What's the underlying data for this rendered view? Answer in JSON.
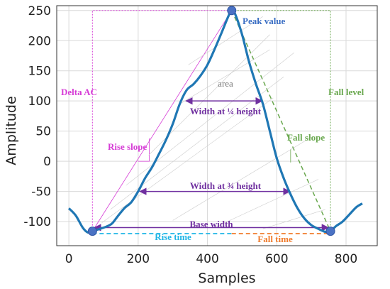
{
  "chart_data": {
    "type": "line",
    "xlabel": "Samples",
    "ylabel": "Amplitude",
    "xlim": [
      -35,
      890
    ],
    "ylim": [
      -140,
      258
    ],
    "xticks": [
      0,
      200,
      400,
      600,
      800
    ],
    "yticks": [
      -100,
      -50,
      0,
      50,
      100,
      150,
      200,
      250
    ],
    "grid": true,
    "series": [
      {
        "color": "#1f77b4",
        "x": [
          0,
          20,
          40,
          55,
          68,
          90,
          110,
          125,
          140,
          160,
          180,
          200,
          220,
          240,
          260,
          280,
          300,
          320,
          340,
          360,
          380,
          400,
          420,
          440,
          460,
          470,
          480,
          500,
          520,
          540,
          560,
          580,
          600,
          620,
          640,
          660,
          680,
          700,
          720,
          740,
          755,
          770,
          790,
          810,
          830,
          847
        ],
        "y": [
          -78,
          -90,
          -110,
          -118,
          -116,
          -112,
          -108,
          -103,
          -92,
          -78,
          -68,
          -50,
          -28,
          -10,
          12,
          35,
          62,
          95,
          118,
          128,
          142,
          160,
          185,
          212,
          240,
          250,
          244,
          210,
          165,
          128,
          95,
          50,
          5,
          -28,
          -55,
          -78,
          -95,
          -106,
          -112,
          -117,
          -116,
          -108,
          -100,
          -88,
          -76,
          -70
        ]
      }
    ],
    "key_points": [
      {
        "x": 68,
        "y": -116
      },
      {
        "x": 470,
        "y": 250
      },
      {
        "x": 755,
        "y": -116
      }
    ],
    "annotations": {
      "peak_value": "Peak value",
      "delta_ac": "Delta AC",
      "area": "area",
      "fall_level": "Fall level",
      "width_quarter": "Width at ¼ height",
      "rise_slope": "Rise slope",
      "fall_slope": "Fall slope",
      "width_three_quarter": "Width at ¾ height",
      "base_width": "Base width",
      "rise_time": "Rise time",
      "fall_time": "Fall time"
    },
    "annotation_colors": {
      "blue": "#1f77b4",
      "magenta": "#d63cd6",
      "purple": "#7030a0",
      "green": "#6aa84f",
      "cyan": "#1fb5e6",
      "orange": "#f07c2d",
      "gray": "#777777"
    }
  }
}
